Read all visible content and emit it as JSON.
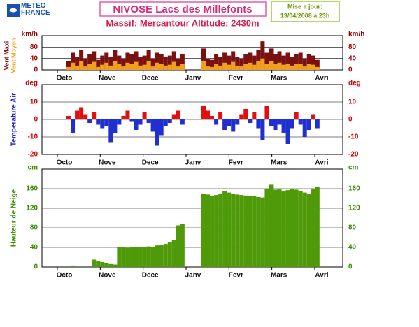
{
  "header": {
    "logo": "METEO FRANCE",
    "title": "NIVOSE Lacs des Millefonts",
    "subtitle": "Massif: Mercantour Altitude: 2430m",
    "update_label": "Mise a jour:",
    "update_date": "13/04/2008 a 23h"
  },
  "chart_data": [
    {
      "type": "bar",
      "y_unit": "km/h",
      "month_labels": [
        "Octo",
        "Nove",
        "Dece",
        "Janv",
        "Fevr",
        "Mars",
        "Avri"
      ],
      "ylim": [
        0,
        120
      ],
      "yticks": [
        0,
        40,
        80
      ],
      "grid": true,
      "tick_color": "#990000",
      "series": [
        {
          "name": "Vent Maxi",
          "color": "#7a1010",
          "values": [
            null,
            30,
            60,
            45,
            70,
            40,
            55,
            65,
            35,
            50,
            60,
            45,
            70,
            50,
            40,
            60,
            55,
            65,
            45,
            50,
            70,
            40,
            60,
            55,
            45,
            50,
            65,
            40,
            55,
            null,
            null,
            null,
            null,
            75,
            40,
            35,
            55,
            45,
            60,
            50,
            65,
            45,
            40,
            55,
            60,
            50,
            70,
            100,
            60,
            75,
            55,
            65,
            50,
            60,
            45,
            55,
            60,
            40,
            55,
            50,
            35
          ]
        },
        {
          "name": "Vent Moyen",
          "color": "#f0a020",
          "values": [
            null,
            10,
            25,
            15,
            30,
            12,
            20,
            28,
            10,
            18,
            25,
            15,
            30,
            20,
            12,
            25,
            20,
            28,
            15,
            18,
            30,
            12,
            25,
            20,
            15,
            18,
            28,
            12,
            20,
            null,
            null,
            null,
            null,
            32,
            12,
            10,
            20,
            15,
            25,
            18,
            28,
            15,
            12,
            20,
            25,
            18,
            30,
            40,
            22,
            30,
            20,
            25,
            18,
            22,
            15,
            20,
            22,
            12,
            20,
            18,
            10
          ]
        }
      ]
    },
    {
      "type": "bar",
      "y_label": "Temperature Air",
      "y_unit": "deg",
      "label_color": "#2020c0",
      "month_labels": [
        "Octo",
        "Nove",
        "Dece",
        "Janv",
        "Fevr",
        "Mars",
        "Avri"
      ],
      "ylim": [
        -20,
        20
      ],
      "yticks": [
        -20,
        -10,
        0,
        10
      ],
      "grid": true,
      "tick_color": "#cc0000",
      "positive_color": "#e01010",
      "negative_color": "#2030d0",
      "values": [
        null,
        2,
        -8,
        5,
        7,
        3,
        -2,
        4,
        -3,
        -5,
        -4,
        -13,
        -8,
        -3,
        2,
        5,
        -1,
        -6,
        -3,
        4,
        -2,
        -7,
        -15,
        -9,
        -4,
        -2,
        3,
        5,
        -3,
        null,
        null,
        null,
        null,
        8,
        5,
        2,
        -3,
        4,
        -6,
        -4,
        -7,
        -3,
        3,
        6,
        -2,
        4,
        -5,
        -12,
        8,
        -4,
        -6,
        -3,
        -8,
        -14,
        -5,
        4,
        -3,
        -10,
        -6,
        3,
        -5
      ]
    },
    {
      "type": "bar",
      "y_label": "Hauteur de Neige",
      "y_unit": "cm",
      "label_color": "#3a8a00",
      "month_labels": [
        "Octo",
        "Nove",
        "Dece",
        "Janv",
        "Fevr",
        "Mars",
        "Avri"
      ],
      "ylim": [
        0,
        200
      ],
      "yticks": [
        0,
        40,
        80,
        120,
        160
      ],
      "grid": true,
      "tick_color": "#3a8a00",
      "color": "#4f9a08",
      "values": [
        null,
        0,
        3,
        0,
        0,
        0,
        0,
        15,
        12,
        10,
        8,
        6,
        5,
        40,
        40,
        39,
        40,
        40,
        40,
        41,
        42,
        40,
        44,
        45,
        47,
        50,
        55,
        85,
        88,
        null,
        null,
        null,
        null,
        150,
        148,
        145,
        147,
        150,
        155,
        152,
        150,
        148,
        147,
        146,
        145,
        145,
        143,
        142,
        160,
        168,
        158,
        160,
        155,
        157,
        160,
        158,
        155,
        152,
        150,
        160,
        163
      ]
    }
  ]
}
